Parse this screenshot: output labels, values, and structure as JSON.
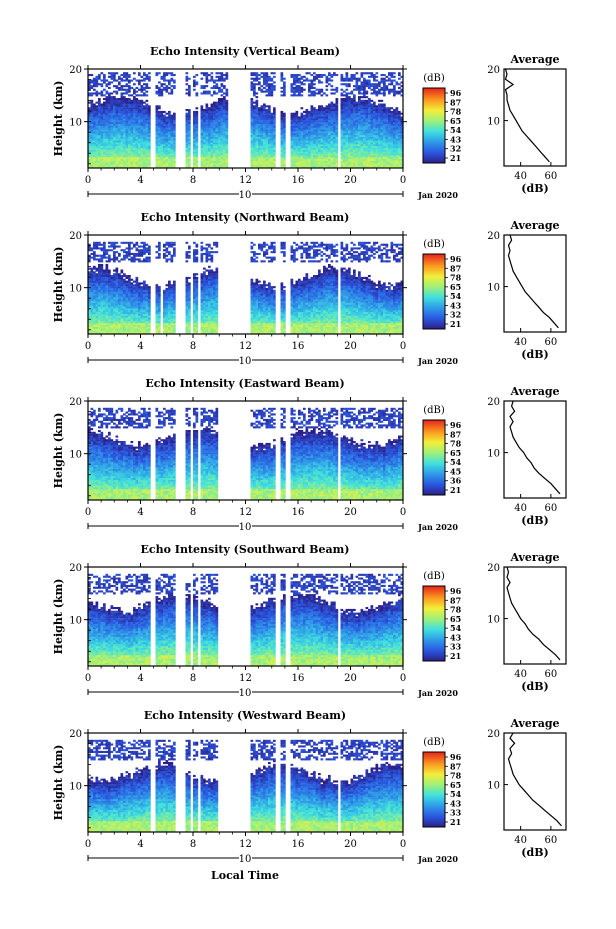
{
  "chart_data": {
    "type": "heatmap",
    "common": {
      "xlabel": "Local Time",
      "x_ticks": [
        "0",
        "4",
        "8",
        "12",
        "16",
        "20",
        "0"
      ],
      "date_day": "10",
      "date_month_year": "Jan 2020",
      "ylabel": "Height (km)",
      "y_ticks": [
        "10",
        "20"
      ],
      "colorbar_unit": "(dB)",
      "colorbar_labels_top_to_bottom": [
        "96",
        "87",
        "78",
        "65",
        "54",
        "43",
        "32",
        "21"
      ],
      "profile_title": "Average",
      "profile_xlabel": "(dB)",
      "profile_x_ticks": [
        "40",
        "60"
      ]
    },
    "panels": [
      {
        "title": "Echo Intensity (Vertical Beam)",
        "colorbar_labels": [
          "96",
          "87",
          "78",
          "65",
          "54",
          "43",
          "32",
          "21"
        ],
        "profile": [
          [
            59,
            2
          ],
          [
            56,
            3
          ],
          [
            53,
            4
          ],
          [
            50,
            5
          ],
          [
            47,
            6
          ],
          [
            44,
            7
          ],
          [
            41,
            8
          ],
          [
            39,
            9
          ],
          [
            37,
            10
          ],
          [
            35,
            11
          ],
          [
            33,
            12
          ],
          [
            32,
            13
          ],
          [
            31,
            14
          ],
          [
            31,
            15
          ],
          [
            30,
            16
          ],
          [
            35,
            17
          ],
          [
            30,
            18
          ],
          [
            31,
            19
          ],
          [
            30,
            20
          ]
        ]
      },
      {
        "title": "Echo Intensity (Northward Beam)",
        "colorbar_labels": [
          "96",
          "87",
          "78",
          "65",
          "54",
          "43",
          "32",
          "21"
        ],
        "profile": [
          [
            65,
            2
          ],
          [
            62,
            3
          ],
          [
            59,
            4
          ],
          [
            55,
            5
          ],
          [
            52,
            6
          ],
          [
            49,
            7
          ],
          [
            46,
            8
          ],
          [
            43,
            9
          ],
          [
            41,
            10
          ],
          [
            39,
            11
          ],
          [
            37,
            12
          ],
          [
            35,
            13
          ],
          [
            34,
            14
          ],
          [
            33,
            15
          ],
          [
            32,
            16
          ],
          [
            33,
            17
          ],
          [
            32,
            18
          ],
          [
            34,
            19
          ],
          [
            33,
            20
          ]
        ]
      },
      {
        "title": "Echo Intensity (Eastward Beam)",
        "colorbar_labels": [
          "96",
          "87",
          "78",
          "65",
          "54",
          "45",
          "36",
          "21"
        ],
        "profile": [
          [
            66,
            2
          ],
          [
            63,
            3
          ],
          [
            60,
            4
          ],
          [
            56,
            5
          ],
          [
            52,
            6
          ],
          [
            49,
            7
          ],
          [
            47,
            8
          ],
          [
            44,
            9
          ],
          [
            42,
            10
          ],
          [
            39,
            11
          ],
          [
            37,
            12
          ],
          [
            35,
            13
          ],
          [
            34,
            14
          ],
          [
            33,
            15
          ],
          [
            35,
            16
          ],
          [
            33,
            17
          ],
          [
            36,
            18
          ],
          [
            34,
            19
          ],
          [
            35,
            20
          ]
        ]
      },
      {
        "title": "Echo Intensity (Southward Beam)",
        "colorbar_labels": [
          "96",
          "87",
          "78",
          "65",
          "54",
          "43",
          "33",
          "21"
        ],
        "profile": [
          [
            66,
            2
          ],
          [
            63,
            3
          ],
          [
            59,
            4
          ],
          [
            55,
            5
          ],
          [
            52,
            6
          ],
          [
            48,
            7
          ],
          [
            45,
            8
          ],
          [
            43,
            9
          ],
          [
            40,
            10
          ],
          [
            38,
            11
          ],
          [
            36,
            12
          ],
          [
            34,
            13
          ],
          [
            33,
            14
          ],
          [
            32,
            15
          ],
          [
            31,
            16
          ],
          [
            33,
            17
          ],
          [
            31,
            18
          ],
          [
            32,
            19
          ],
          [
            31,
            20
          ]
        ]
      },
      {
        "title": "Echo Intensity (Westward Beam)",
        "colorbar_labels": [
          "96",
          "87",
          "78",
          "65",
          "54",
          "43",
          "33",
          "21"
        ],
        "profile": [
          [
            67,
            2
          ],
          [
            64,
            3
          ],
          [
            60,
            4
          ],
          [
            56,
            5
          ],
          [
            52,
            6
          ],
          [
            48,
            7
          ],
          [
            45,
            8
          ],
          [
            42,
            9
          ],
          [
            39,
            10
          ],
          [
            37,
            11
          ],
          [
            35,
            12
          ],
          [
            34,
            13
          ],
          [
            33,
            14
          ],
          [
            32,
            15
          ],
          [
            34,
            16
          ],
          [
            33,
            17
          ],
          [
            36,
            18
          ],
          [
            33,
            19
          ],
          [
            35,
            20
          ]
        ]
      }
    ]
  }
}
